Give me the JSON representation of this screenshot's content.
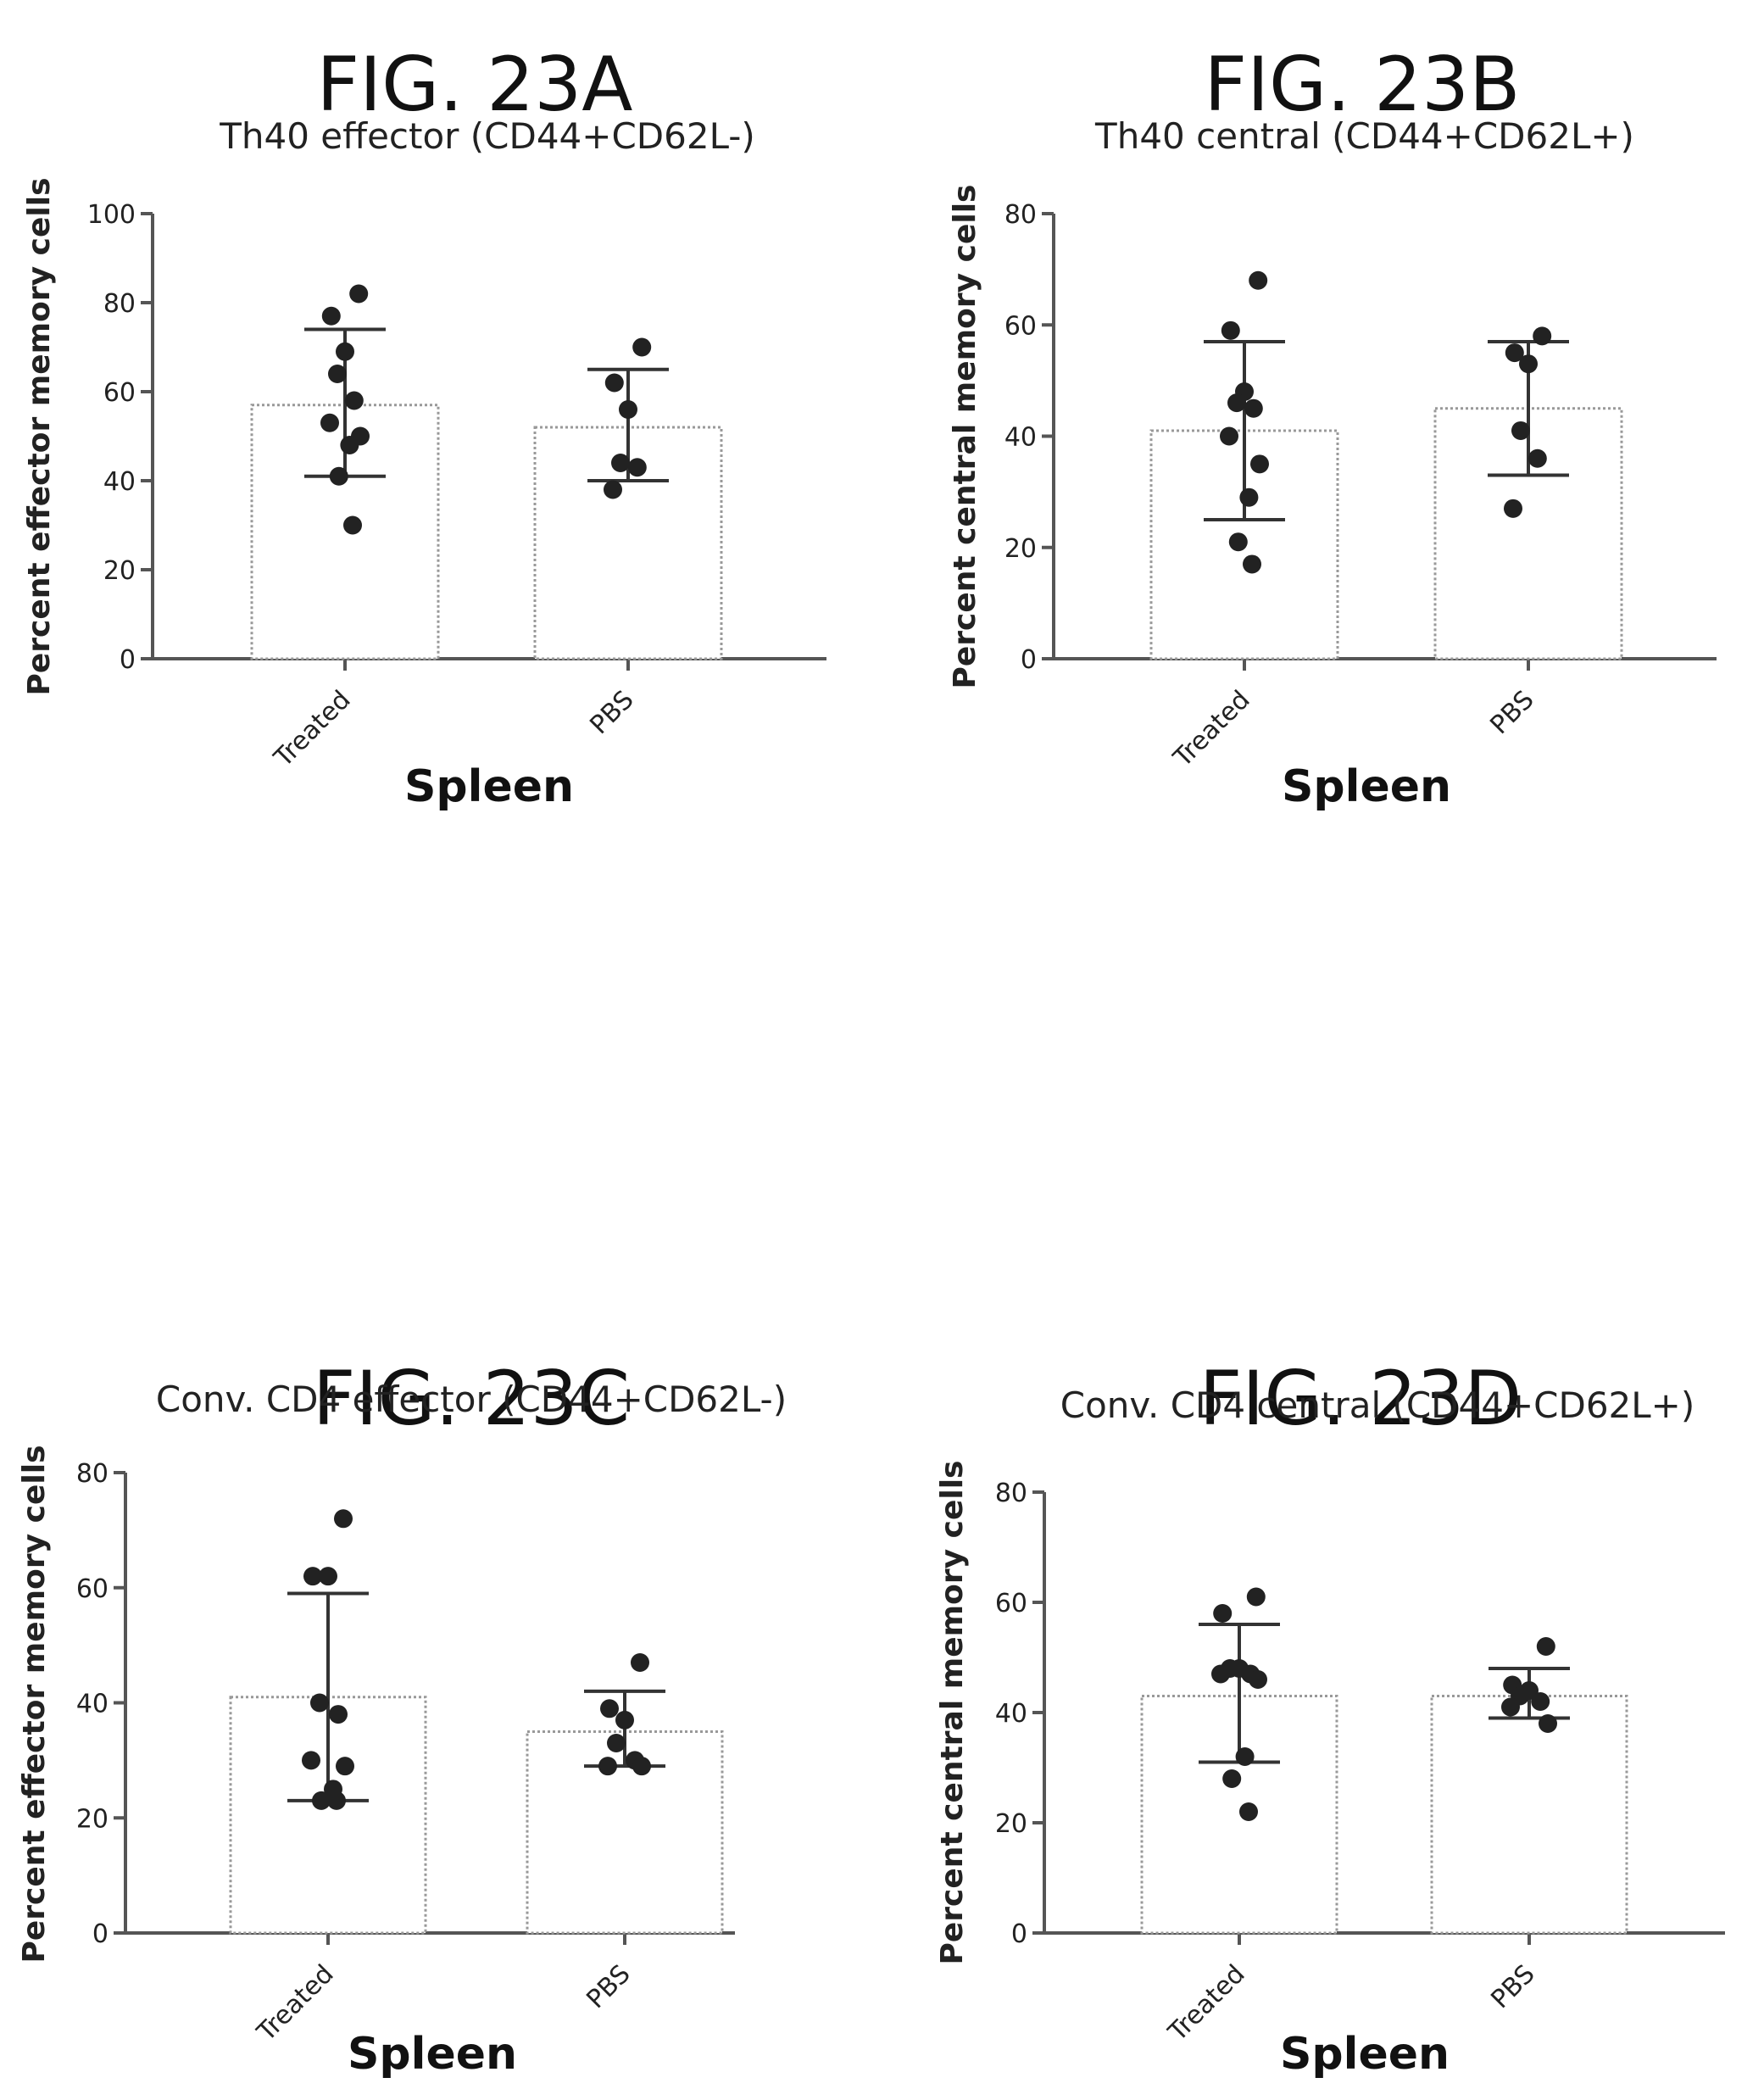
{
  "chart_data": [
    {
      "type": "bar",
      "figure_label": "FIG. 23A",
      "title": "Th40 effector (CD44+CD62L-)",
      "xlabel": "Spleen",
      "ylabel": "Percent effector memory cells",
      "ylim": [
        0,
        100
      ],
      "yticks": [
        0,
        20,
        40,
        60,
        80,
        100
      ],
      "categories": [
        "Treated",
        "PBS"
      ],
      "means": [
        57,
        52
      ],
      "error_upper": [
        74,
        65
      ],
      "error_lower": [
        41,
        40
      ],
      "points": [
        [
          82,
          77,
          69,
          64,
          58,
          53,
          50,
          48,
          41,
          30
        ],
        [
          70,
          62,
          56,
          44,
          43,
          38
        ]
      ],
      "grid": false
    },
    {
      "type": "bar",
      "figure_label": "FIG. 23B",
      "title": "Th40 central (CD44+CD62L+)",
      "xlabel": "Spleen",
      "ylabel": "Percent central memory cells",
      "ylim": [
        0,
        80
      ],
      "yticks": [
        0,
        20,
        40,
        60,
        80
      ],
      "categories": [
        "Treated",
        "PBS"
      ],
      "means": [
        41,
        45
      ],
      "error_upper": [
        57,
        57
      ],
      "error_lower": [
        25,
        33
      ],
      "points": [
        [
          68,
          59,
          48,
          46,
          45,
          40,
          35,
          29,
          21,
          17
        ],
        [
          58,
          55,
          53,
          41,
          36,
          27
        ]
      ],
      "grid": false
    },
    {
      "type": "bar",
      "figure_label": "FIG. 23C",
      "title": "Conv. CD4 effector (CD44+CD62L-)",
      "xlabel": "Spleen",
      "ylabel": "Percent effector memory cells",
      "ylim": [
        0,
        80
      ],
      "yticks": [
        0,
        20,
        40,
        60,
        80
      ],
      "categories": [
        "Treated",
        "PBS"
      ],
      "means": [
        41,
        35
      ],
      "error_upper": [
        59,
        42
      ],
      "error_lower": [
        23,
        29
      ],
      "points": [
        [
          72,
          62,
          62,
          40,
          38,
          30,
          29,
          25,
          23,
          23
        ],
        [
          47,
          39,
          37,
          33,
          30,
          29,
          29
        ]
      ],
      "grid": false
    },
    {
      "type": "bar",
      "figure_label": "FIG. 23D",
      "title": "Conv. CD4 central (CD44+CD62L+)",
      "xlabel": "Spleen",
      "ylabel": "Percent central memory cells",
      "ylim": [
        0,
        80
      ],
      "yticks": [
        0,
        20,
        40,
        60,
        80
      ],
      "categories": [
        "Treated",
        "PBS"
      ],
      "means": [
        43,
        43
      ],
      "error_upper": [
        56,
        48
      ],
      "error_lower": [
        31,
        39
      ],
      "points": [
        [
          61,
          58,
          48,
          48,
          47,
          47,
          46,
          32,
          28,
          22
        ],
        [
          52,
          45,
          44,
          43,
          42,
          41,
          38
        ]
      ],
      "grid": false
    }
  ]
}
